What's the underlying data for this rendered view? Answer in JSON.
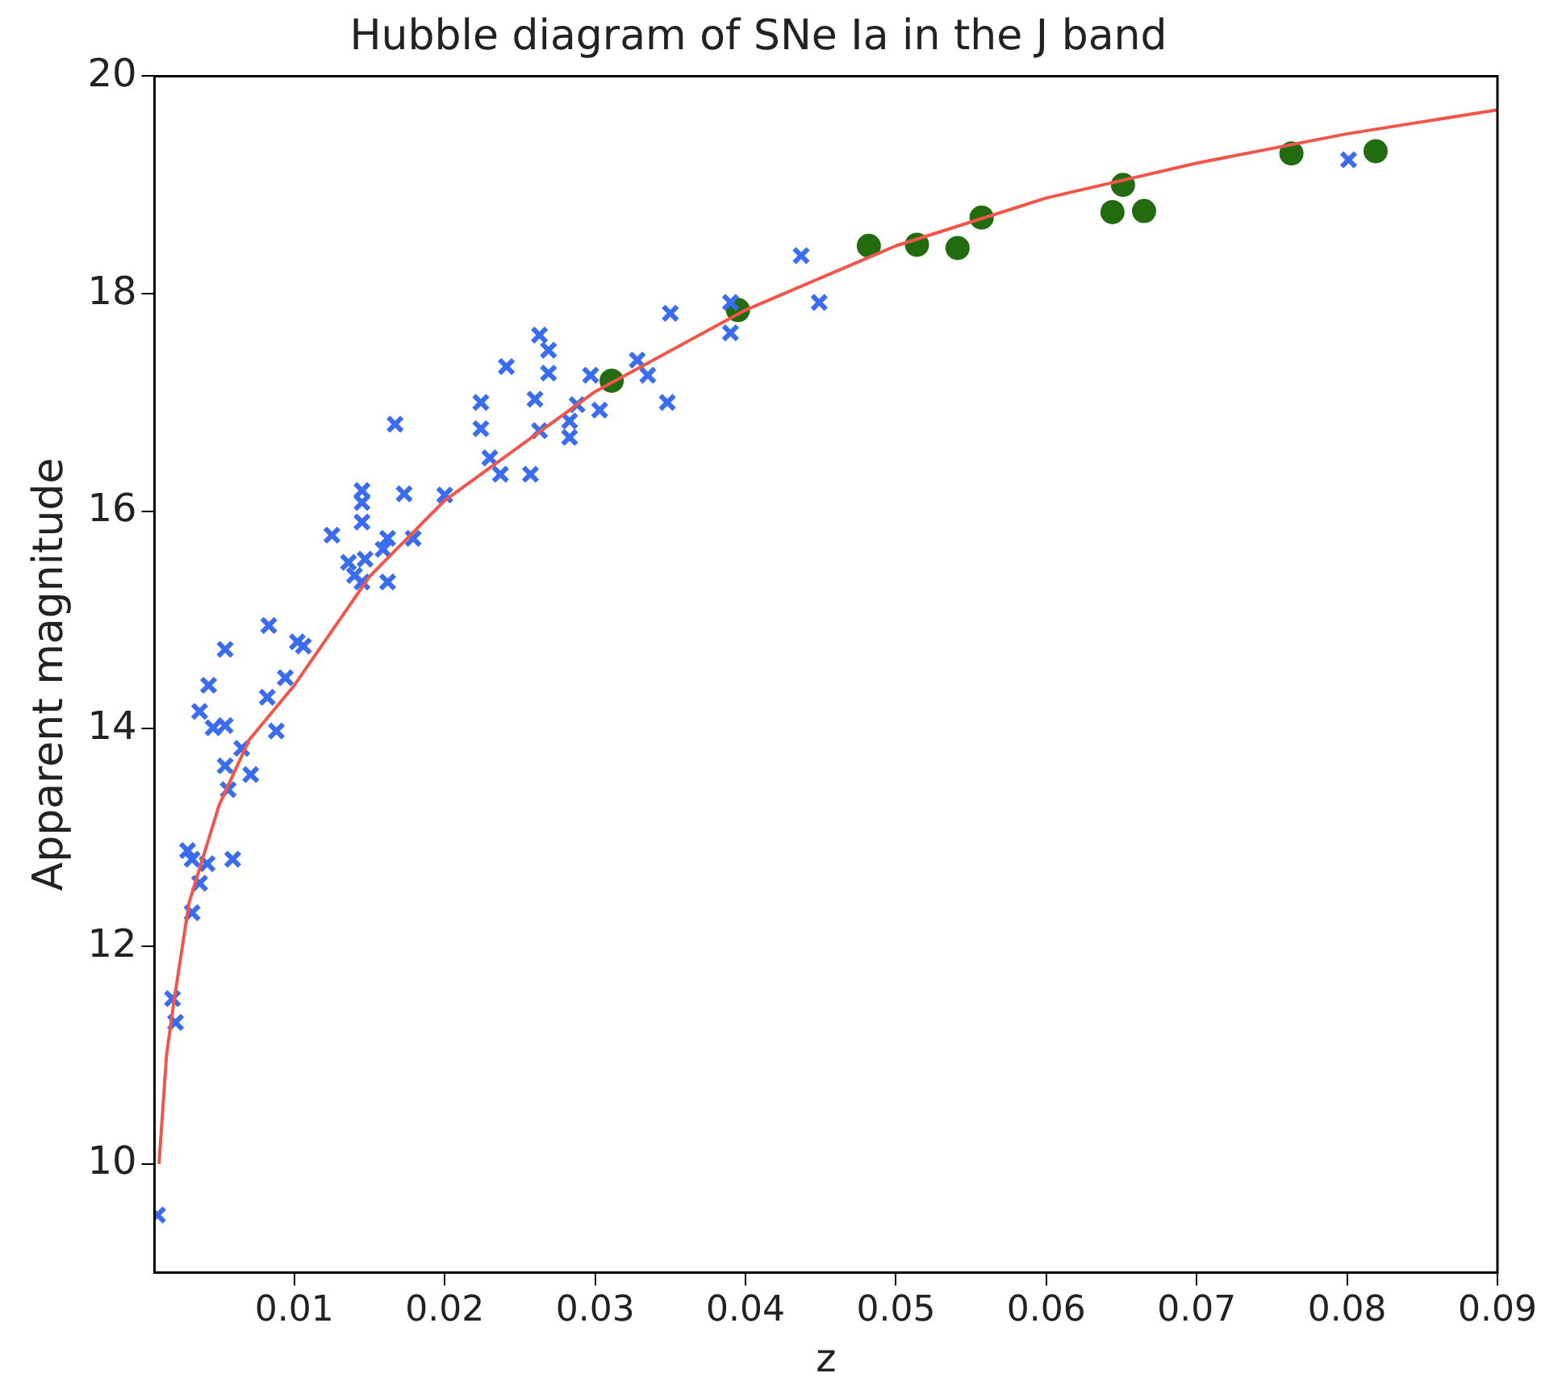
{
  "chart_data": {
    "type": "scatter",
    "title": "Hubble diagram of SNe Ia in the J band",
    "xlabel": "z",
    "ylabel": "Apparent magnitude",
    "xlim": [
      0.0007,
      0.09
    ],
    "ylim": [
      9,
      20
    ],
    "xticks": [
      0.01,
      0.02,
      0.03,
      0.04,
      0.05,
      0.06,
      0.07,
      0.08,
      0.09
    ],
    "yticks": [
      10,
      12,
      14,
      16,
      18,
      20
    ],
    "grid": false,
    "legend": false,
    "series": [
      {
        "type": "scatter",
        "marker": "cross",
        "color": "#3a6cf0",
        "x": [
          0.0009,
          0.0019,
          0.0021,
          0.0029,
          0.0032,
          0.0042,
          0.0059,
          0.0037,
          0.0032,
          0.0083,
          0.0054,
          0.0106,
          0.0094,
          0.0043,
          0.0082,
          0.0037,
          0.0046,
          0.0054,
          0.0088,
          0.0065,
          0.0054,
          0.0071,
          0.0056,
          0.0102,
          0.0167,
          0.0224,
          0.026,
          0.0224,
          0.0263,
          0.023,
          0.0237,
          0.0257,
          0.0145,
          0.0173,
          0.02,
          0.0145,
          0.0145,
          0.0125,
          0.0162,
          0.0179,
          0.0159,
          0.0136,
          0.0147,
          0.014,
          0.0145,
          0.0162,
          0.0437,
          0.0449,
          0.035,
          0.039,
          0.039,
          0.0263,
          0.0269,
          0.0241,
          0.0269,
          0.0328,
          0.0335,
          0.0297,
          0.0348,
          0.0288,
          0.0303,
          0.0283,
          0.0283,
          0.0801
        ],
        "values": [
          9.53,
          11.52,
          11.3,
          12.88,
          12.8,
          12.76,
          12.8,
          12.58,
          12.31,
          14.95,
          14.73,
          14.76,
          14.47,
          14.4,
          14.29,
          14.16,
          14.01,
          14.03,
          13.98,
          13.82,
          13.66,
          13.58,
          13.44,
          14.8,
          16.8,
          17.0,
          17.03,
          16.76,
          16.74,
          16.49,
          16.34,
          16.34,
          16.19,
          16.16,
          16.15,
          16.08,
          15.9,
          15.78,
          15.75,
          15.75,
          15.65,
          15.53,
          15.56,
          15.41,
          15.35,
          15.35,
          18.35,
          17.92,
          17.82,
          17.92,
          17.64,
          17.62,
          17.48,
          17.33,
          17.27,
          17.39,
          17.25,
          17.25,
          17.0,
          16.98,
          16.93,
          16.83,
          16.68,
          19.23
        ]
      },
      {
        "type": "scatter",
        "marker": "circle",
        "color": "#236b0f",
        "x": [
          0.0311,
          0.0395,
          0.0482,
          0.0514,
          0.0541,
          0.0557,
          0.0644,
          0.0651,
          0.0665,
          0.0763,
          0.0819
        ],
        "values": [
          17.2,
          17.85,
          18.44,
          18.45,
          18.42,
          18.7,
          18.75,
          19.0,
          18.76,
          19.29,
          19.31
        ]
      },
      {
        "type": "line",
        "marker": "none",
        "color": "#f0564a",
        "x": [
          0.001,
          0.0015,
          0.002,
          0.003,
          0.005,
          0.007,
          0.01,
          0.015,
          0.02,
          0.03,
          0.04,
          0.05,
          0.06,
          0.07,
          0.08,
          0.09
        ],
        "values": [
          10.0,
          11.0,
          11.5,
          12.4,
          13.3,
          13.9,
          14.4,
          15.4,
          16.1,
          17.1,
          17.85,
          18.44,
          18.88,
          19.2,
          19.47,
          19.69
        ]
      }
    ]
  }
}
